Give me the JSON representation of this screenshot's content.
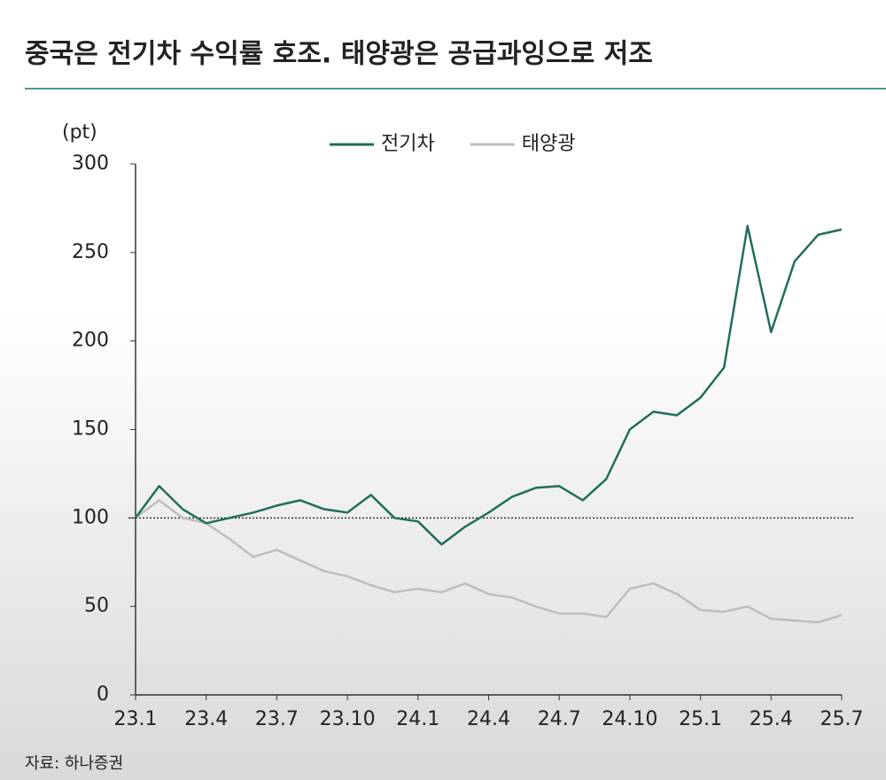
{
  "chart_data": {
    "type": "line",
    "title": "중국은 전기차 수익률 호조. 태양광은 공급과잉으로 저조",
    "y_label": "(pt)",
    "source": "자료: 하나증권",
    "categories": [
      "23.1",
      null,
      null,
      "23.4",
      null,
      null,
      "23.7",
      null,
      null,
      "23.10",
      null,
      null,
      "24.1",
      null,
      null,
      "24.4",
      null,
      null,
      "24.7",
      null,
      null,
      "24.10",
      null,
      null,
      "25.1",
      null,
      null,
      "25.4",
      null,
      null,
      "25.7"
    ],
    "series": [
      {
        "name": "전기차",
        "color": "#1f6e5c",
        "values": [
          100,
          118,
          105,
          97,
          100,
          103,
          107,
          110,
          105,
          103,
          113,
          100,
          98,
          85,
          95,
          103,
          112,
          117,
          118,
          110,
          122,
          150,
          160,
          158,
          168,
          185,
          265,
          205,
          245,
          260,
          263
        ]
      },
      {
        "name": "태양광",
        "color": "#bdbdbd",
        "values": [
          100,
          110,
          100,
          97,
          88,
          78,
          82,
          76,
          70,
          67,
          62,
          58,
          60,
          58,
          63,
          57,
          55,
          50,
          46,
          46,
          44,
          60,
          63,
          57,
          48,
          47,
          50,
          43,
          42,
          41,
          45
        ]
      }
    ],
    "reference_line": 100,
    "ylim": [
      0,
      300
    ],
    "yticks": [
      0,
      50,
      100,
      150,
      200,
      250,
      300
    ],
    "grid": false
  }
}
